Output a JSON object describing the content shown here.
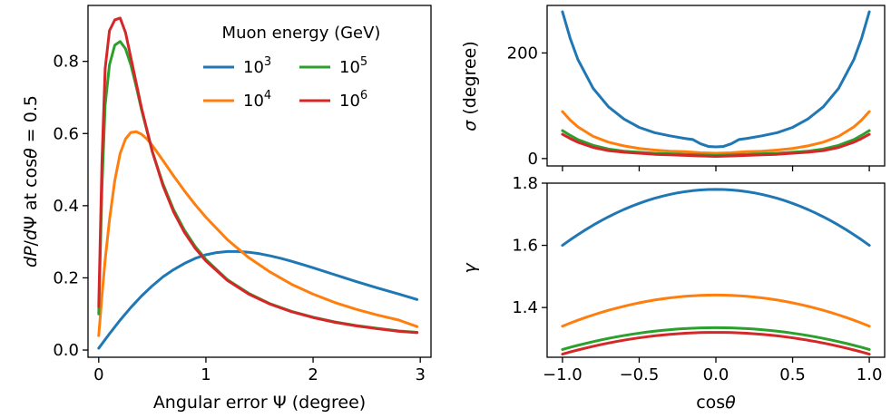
{
  "chart_data": [
    {
      "type": "line",
      "xlabel": "Angular error Ψ (degree)",
      "ylabel": "dP/dΨ at cosθ = 0.5",
      "xlim": [
        -0.1,
        3.1
      ],
      "ylim": [
        -0.02,
        0.955
      ],
      "xticks": [
        0,
        1,
        2,
        3
      ],
      "xtick_labels": [
        "0",
        "1",
        "2",
        "3"
      ],
      "yticks": [
        0.0,
        0.2,
        0.4,
        0.6,
        0.8
      ],
      "ytick_labels": [
        "0.0",
        "0.2",
        "0.4",
        "0.6",
        "0.8"
      ],
      "grid": false,
      "legend": {
        "title": "Muon energy (GeV)",
        "placement": "top-right",
        "columns": 2,
        "entries": [
          {
            "base": "10",
            "exp": "3"
          },
          {
            "base": "10",
            "exp": "4"
          },
          {
            "base": "10",
            "exp": "5"
          },
          {
            "base": "10",
            "exp": "6"
          }
        ]
      },
      "series": [
        {
          "name": "10^3",
          "color": "#1f77b4",
          "x": [
            0,
            0.1,
            0.2,
            0.3,
            0.4,
            0.5,
            0.6,
            0.7,
            0.8,
            0.9,
            1.0,
            1.1,
            1.2,
            1.3,
            1.4,
            1.5,
            1.6,
            1.7,
            1.8,
            1.9,
            2.0,
            2.2,
            2.4,
            2.6,
            2.8,
            2.97
          ],
          "y": [
            0.005,
            0.045,
            0.083,
            0.118,
            0.15,
            0.178,
            0.203,
            0.223,
            0.24,
            0.254,
            0.264,
            0.27,
            0.273,
            0.273,
            0.271,
            0.267,
            0.261,
            0.254,
            0.246,
            0.237,
            0.228,
            0.209,
            0.19,
            0.172,
            0.155,
            0.14
          ]
        },
        {
          "name": "10^4",
          "color": "#ff7f0e",
          "x": [
            0,
            0.03,
            0.06,
            0.1,
            0.15,
            0.2,
            0.25,
            0.3,
            0.35,
            0.4,
            0.45,
            0.5,
            0.6,
            0.7,
            0.8,
            0.9,
            1.0,
            1.2,
            1.4,
            1.6,
            1.8,
            2.0,
            2.2,
            2.4,
            2.6,
            2.8,
            2.97
          ],
          "y": [
            0.04,
            0.15,
            0.25,
            0.36,
            0.47,
            0.545,
            0.585,
            0.603,
            0.605,
            0.598,
            0.585,
            0.567,
            0.525,
            0.482,
            0.441,
            0.403,
            0.368,
            0.306,
            0.256,
            0.216,
            0.182,
            0.155,
            0.132,
            0.113,
            0.097,
            0.083,
            0.065
          ]
        },
        {
          "name": "10^5",
          "color": "#2ca02c",
          "x": [
            0,
            0.03,
            0.06,
            0.1,
            0.15,
            0.2,
            0.25,
            0.3,
            0.35,
            0.4,
            0.5,
            0.6,
            0.7,
            0.8,
            0.9,
            1.0,
            1.2,
            1.4,
            1.6,
            1.8,
            2.0,
            2.2,
            2.4,
            2.6,
            2.8,
            2.97
          ],
          "y": [
            0.1,
            0.45,
            0.68,
            0.79,
            0.845,
            0.855,
            0.835,
            0.79,
            0.73,
            0.665,
            0.55,
            0.46,
            0.388,
            0.332,
            0.287,
            0.251,
            0.195,
            0.157,
            0.128,
            0.107,
            0.091,
            0.078,
            0.068,
            0.06,
            0.053,
            0.049
          ]
        },
        {
          "name": "10^6",
          "color": "#d62728",
          "x": [
            0,
            0.03,
            0.06,
            0.1,
            0.15,
            0.2,
            0.25,
            0.3,
            0.35,
            0.4,
            0.5,
            0.6,
            0.7,
            0.8,
            0.9,
            1.0,
            1.2,
            1.4,
            1.6,
            1.8,
            2.0,
            2.2,
            2.4,
            2.6,
            2.8,
            2.97
          ],
          "y": [
            0.12,
            0.52,
            0.78,
            0.885,
            0.915,
            0.92,
            0.88,
            0.81,
            0.74,
            0.67,
            0.55,
            0.455,
            0.382,
            0.326,
            0.282,
            0.247,
            0.193,
            0.155,
            0.127,
            0.106,
            0.09,
            0.077,
            0.067,
            0.059,
            0.052,
            0.048
          ]
        }
      ]
    },
    {
      "type": "line",
      "xlabel": "",
      "ylabel": "σ (degree)",
      "xlim": [
        -1.1,
        1.1
      ],
      "ylim": [
        -14,
        290
      ],
      "xticks": [
        -1.0,
        -0.5,
        0.0,
        0.5,
        1.0
      ],
      "yticks": [
        0,
        200
      ],
      "ytick_labels": [
        "0",
        "200"
      ],
      "grid": false,
      "series": [
        {
          "name": "10^3",
          "color": "#1f77b4",
          "x": [
            -1.0,
            -0.95,
            -0.9,
            -0.8,
            -0.7,
            -0.6,
            -0.5,
            -0.4,
            -0.3,
            -0.2,
            -0.15,
            -0.1,
            -0.05,
            0.0,
            0.05,
            0.1,
            0.15,
            0.2,
            0.3,
            0.4,
            0.5,
            0.6,
            0.7,
            0.8,
            0.9,
            0.95,
            1.0
          ],
          "y": [
            278,
            228,
            188,
            133,
            98,
            75,
            59,
            49,
            43,
            38,
            36,
            28,
            23,
            22,
            23,
            28,
            36,
            38,
            43,
            49,
            59,
            75,
            98,
            133,
            188,
            228,
            278
          ]
        },
        {
          "name": "10^4",
          "color": "#ff7f0e",
          "x": [
            -1.0,
            -0.95,
            -0.9,
            -0.8,
            -0.7,
            -0.6,
            -0.5,
            -0.4,
            -0.3,
            -0.2,
            -0.1,
            0.0,
            0.1,
            0.2,
            0.3,
            0.4,
            0.5,
            0.6,
            0.7,
            0.8,
            0.9,
            0.95,
            1.0
          ],
          "y": [
            89,
            73,
            60,
            42,
            31,
            24,
            19,
            16,
            14,
            13,
            11,
            10,
            11,
            13,
            14,
            16,
            19,
            24,
            31,
            42,
            60,
            73,
            89
          ]
        },
        {
          "name": "10^5",
          "color": "#2ca02c",
          "x": [
            -1.0,
            -0.95,
            -0.9,
            -0.8,
            -0.7,
            -0.6,
            -0.5,
            -0.4,
            -0.3,
            -0.2,
            -0.1,
            0.0,
            0.1,
            0.2,
            0.3,
            0.4,
            0.5,
            0.6,
            0.7,
            0.8,
            0.9,
            0.95,
            1.0
          ],
          "y": [
            53,
            44,
            36,
            25,
            18,
            14,
            12,
            10,
            9,
            8,
            7,
            6,
            7,
            8,
            9,
            10,
            12,
            14,
            18,
            25,
            36,
            44,
            53
          ]
        },
        {
          "name": "10^6",
          "color": "#d62728",
          "x": [
            -1.0,
            -0.95,
            -0.9,
            -0.8,
            -0.7,
            -0.6,
            -0.5,
            -0.4,
            -0.3,
            -0.2,
            -0.1,
            0.0,
            0.1,
            0.2,
            0.3,
            0.4,
            0.5,
            0.6,
            0.7,
            0.8,
            0.9,
            0.95,
            1.0
          ],
          "y": [
            46,
            38,
            31,
            21,
            15,
            12,
            10,
            8,
            7,
            6,
            5,
            4,
            5,
            6,
            7,
            8,
            10,
            12,
            15,
            21,
            31,
            38,
            46
          ]
        }
      ]
    },
    {
      "type": "line",
      "xlabel": "cos θ",
      "ylabel": "γ",
      "xlim": [
        -1.1,
        1.1
      ],
      "ylim": [
        1.24,
        1.8
      ],
      "xticks": [
        -1.0,
        -0.5,
        0.0,
        0.5,
        1.0
      ],
      "xtick_labels": [
        "−1.0",
        "−0.5",
        "0.0",
        "0.5",
        "1.0"
      ],
      "yticks": [
        1.4,
        1.6,
        1.8
      ],
      "ytick_labels": [
        "1.4",
        "1.6",
        "1.8"
      ],
      "grid": false,
      "series": [
        {
          "name": "10^3",
          "color": "#1f77b4",
          "peak": 1.78,
          "edge": 1.6
        },
        {
          "name": "10^4",
          "color": "#ff7f0e",
          "peak": 1.44,
          "edge": 1.34
        },
        {
          "name": "10^5",
          "color": "#2ca02c",
          "peak": 1.335,
          "edge": 1.265
        },
        {
          "name": "10^6",
          "color": "#d62728",
          "peak": 1.32,
          "edge": 1.25
        }
      ]
    }
  ]
}
